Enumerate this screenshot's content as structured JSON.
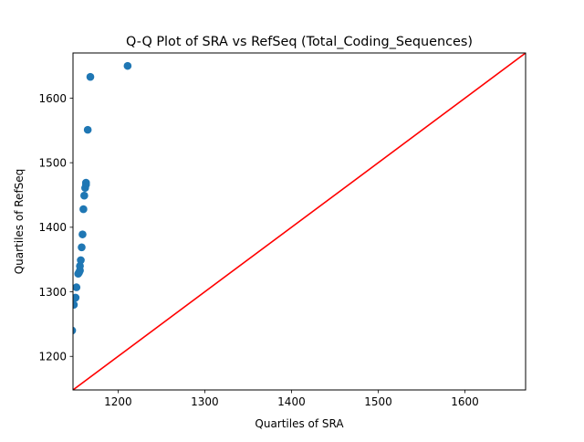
{
  "chart_data": {
    "type": "scatter",
    "title": "Q-Q Plot of SRA vs RefSeq (Total_Coding_Sequences)",
    "xlabel": "Quartiles of SRA",
    "ylabel": "Quartiles of RefSeq",
    "xlim": [
      1148,
      1670
    ],
    "ylim": [
      1148,
      1670
    ],
    "xticks": [
      1200,
      1300,
      1400,
      1500,
      1600
    ],
    "yticks": [
      1200,
      1300,
      1400,
      1500,
      1600
    ],
    "grid": false,
    "series": [
      {
        "points": [
          [
            1147,
            1240
          ],
          [
            1149,
            1280
          ],
          [
            1151,
            1291
          ],
          [
            1152,
            1307
          ],
          [
            1154,
            1328
          ],
          [
            1155,
            1330
          ],
          [
            1156,
            1333
          ],
          [
            1156,
            1340
          ],
          [
            1157,
            1349
          ],
          [
            1158,
            1369
          ],
          [
            1159,
            1389
          ],
          [
            1160,
            1428
          ],
          [
            1161,
            1449
          ],
          [
            1162,
            1461
          ],
          [
            1163,
            1466
          ],
          [
            1163,
            1469
          ],
          [
            1165,
            1551
          ],
          [
            1168,
            1633
          ],
          [
            1211,
            1650
          ]
        ],
        "color": "#1f77b4"
      }
    ],
    "reference_line": {
      "from": [
        1148,
        1148
      ],
      "to": [
        1670,
        1670
      ],
      "color": "#ff0000"
    }
  }
}
